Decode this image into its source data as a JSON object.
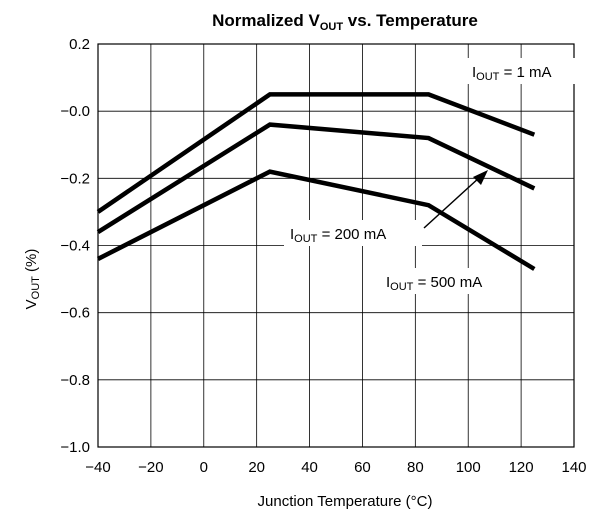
{
  "chart_data": {
    "type": "line",
    "title": {
      "main": "Normalized V",
      "sub": "OUT",
      "rest": " vs. Temperature"
    },
    "xlabel": "Junction Temperature (°C)",
    "ylabel": {
      "main": "V",
      "sub": "OUT",
      "rest": " (%)"
    },
    "xlim": [
      -40,
      140
    ],
    "ylim": [
      -1.0,
      0.2
    ],
    "xticks": [
      "−40",
      "−20",
      "0",
      "20",
      "40",
      "60",
      "80",
      "100",
      "120",
      "140"
    ],
    "yticks": [
      "0.2",
      "−0.0",
      "−0.2",
      "−0.4",
      "−0.6",
      "−0.8",
      "−1.0"
    ],
    "grid": true,
    "series": [
      {
        "name": "1 mA",
        "x": [
          -40,
          25,
          85,
          125
        ],
        "y": [
          -0.3,
          0.05,
          0.05,
          -0.07
        ]
      },
      {
        "name": "200 mA",
        "x": [
          -40,
          25,
          85,
          125
        ],
        "y": [
          -0.36,
          -0.04,
          -0.08,
          -0.23
        ]
      },
      {
        "name": "500 mA",
        "x": [
          -40,
          25,
          85,
          125
        ],
        "y": [
          -0.44,
          -0.18,
          -0.28,
          -0.47
        ]
      }
    ],
    "annotations": [
      {
        "main": "I",
        "sub": "OUT",
        "rest": " = 1 mA"
      },
      {
        "main": "I",
        "sub": "OUT",
        "rest": " = 200 mA"
      },
      {
        "main": "I",
        "sub": "OUT",
        "rest": " = 500 mA"
      }
    ]
  }
}
